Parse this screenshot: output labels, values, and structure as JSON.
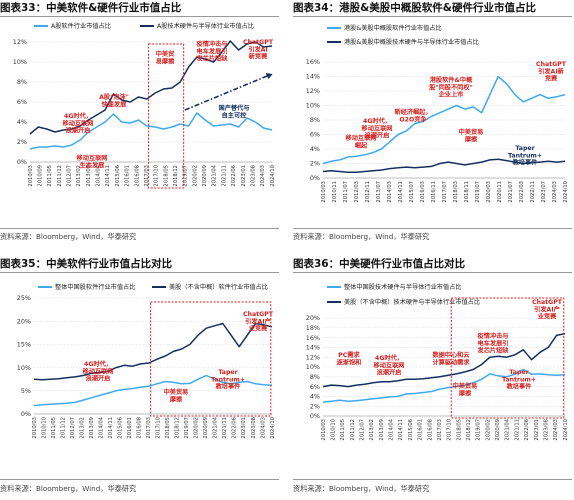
{
  "colors": {
    "dark": "#15305e",
    "light": "#3fa9f0",
    "red": "#d62020",
    "grid": "#c8c8c8"
  },
  "source": "资料来源：Bloomberg，Wind，华泰研究",
  "panels": [
    {
      "title": "图表33：",
      "subtitle": "中美软件&硬件行业市值占比",
      "source": "资料来源：Bloomberg，Wind，华泰研究"
    },
    {
      "title": "图表34：",
      "subtitle": "港股&美股中概股软件&硬件行业市值占比",
      "source": "资料来源：Bloomberg，Wind，华泰研究"
    },
    {
      "title": "图表35：",
      "subtitle": "中美软件行业市值占比对比",
      "source": "资料来源：Bloomberg，Wind，华泰研究"
    },
    {
      "title": "图表36：",
      "subtitle": "中美硬件行业市值占比对比",
      "source": "资料来源：Bloomberg，Wind，华泰研究"
    }
  ],
  "chart_data": [
    {
      "type": "line",
      "title": "中美软件&硬件行业市值占比",
      "x": [
        "2010/03",
        "2010/09",
        "2011/03",
        "2011/09",
        "2012/03",
        "2012/09",
        "2013/03",
        "2013/09",
        "2014/03",
        "2014/09",
        "2015/03",
        "2015/09",
        "2016/03",
        "2016/09",
        "2017/03",
        "2017/09",
        "2018/03",
        "2018/09",
        "2019/03",
        "2019/09",
        "2020/03",
        "2020/09",
        "2021/03",
        "2021/09",
        "2022/03",
        "2022/09",
        "2023/03",
        "2023/09",
        "2024/03",
        "2024/10"
      ],
      "xticks": [
        "2010/03",
        "2010/09",
        "2011/05",
        "2011/12",
        "2012/07",
        "2013/02",
        "2013/09",
        "2014/04",
        "2014/11",
        "2015/06",
        "2016/01",
        "2016/08",
        "2017/03",
        "2017/10",
        "2018/05",
        "2018/12",
        "2019/07",
        "2020/02",
        "2020/09",
        "2021/04",
        "2021/11",
        "2022/06",
        "2023/01",
        "2023/08",
        "2024/03",
        "2024/10"
      ],
      "ylim": [
        0,
        12
      ],
      "yticks": [
        0,
        2,
        4,
        6,
        8,
        10,
        12
      ],
      "ytick_labels": [
        "0%",
        "2%",
        "4%",
        "6%",
        "8%",
        "10%",
        "12%"
      ],
      "legend": "top",
      "series": [
        {
          "name": "A股软件行业市值占比",
          "color": "light",
          "values": [
            1.3,
            1.5,
            1.5,
            1.6,
            1.5,
            1.7,
            2.2,
            3.0,
            3.5,
            4.0,
            4.8,
            4.0,
            3.9,
            4.2,
            3.6,
            3.5,
            3.3,
            3.5,
            3.8,
            3.6,
            4.9,
            4.2,
            3.6,
            3.7,
            3.8,
            3.5,
            4.4,
            4.0,
            3.4,
            3.2
          ]
        },
        {
          "name": "A股技术硬件与半导体行业市值占比",
          "color": "dark",
          "values": [
            2.8,
            3.5,
            3.3,
            3.0,
            3.2,
            3.3,
            3.6,
            4.2,
            4.7,
            5.2,
            6.8,
            6.2,
            6.0,
            6.5,
            6.3,
            6.9,
            7.3,
            7.4,
            8.0,
            9.5,
            10.5,
            10.3,
            10.0,
            11.0,
            12.1,
            11.2,
            11.8,
            12.0,
            11.5,
            11.6
          ]
        }
      ],
      "annotations": [
        "4G时代，移动互联网浪潮开启",
        "A股\"泡沫\"快速发展",
        "移动互联网生态发展",
        "中美贸易摩擦",
        "疫情冲击与电车发展引发芯片短缺",
        "ChatGPT引发AI新竞赛",
        "国产替代与自主可控"
      ]
    },
    {
      "type": "line",
      "title": "港股&美股中概股软件&硬件行业市值占比",
      "x": [
        "2010/03",
        "2010/09",
        "2011/03",
        "2011/09",
        "2012/03",
        "2012/09",
        "2013/03",
        "2013/09",
        "2014/03",
        "2014/09",
        "2015/03",
        "2015/09",
        "2016/03",
        "2016/09",
        "2017/03",
        "2017/09",
        "2018/03",
        "2018/09",
        "2019/03",
        "2019/09",
        "2020/03",
        "2020/09",
        "2021/03",
        "2021/09",
        "2022/03",
        "2022/09",
        "2023/03",
        "2023/09",
        "2024/03",
        "2024/10"
      ],
      "xticks": [
        "2010/03",
        "2010/11",
        "2011/07",
        "2012/03",
        "2012/11",
        "2013/07",
        "2014/03",
        "2014/11",
        "2015/07",
        "2016/03",
        "2016/11",
        "2017/07",
        "2018/03",
        "2018/11",
        "2019/07",
        "2020/03",
        "2020/11",
        "2021/07",
        "2022/03",
        "2022/11",
        "2023/07",
        "2024/03",
        "2024/10"
      ],
      "ylim": [
        0,
        16
      ],
      "yticks": [
        0,
        2,
        4,
        6,
        8,
        10,
        12,
        14,
        16
      ],
      "ytick_labels": [
        "0%",
        "2%",
        "4%",
        "6%",
        "8%",
        "10%",
        "12%",
        "14%",
        "16%"
      ],
      "legend": "top",
      "series": [
        {
          "name": "港股&美股中概股软件行业市值占比",
          "color": "light",
          "values": [
            2.0,
            2.3,
            2.5,
            2.9,
            3.0,
            3.2,
            3.5,
            4.0,
            5.0,
            6.0,
            6.5,
            7.5,
            7.8,
            8.5,
            9.0,
            9.5,
            10.0,
            9.5,
            9.8,
            9.0,
            11.5,
            14.0,
            13.0,
            11.5,
            10.5,
            11.0,
            11.5,
            11.0,
            11.2,
            11.5
          ]
        },
        {
          "name": "港股&美股中概股技术硬件与半导体行业市值占比",
          "color": "dark",
          "values": [
            0.9,
            1.0,
            0.9,
            0.8,
            0.8,
            0.9,
            1.0,
            1.1,
            1.3,
            1.4,
            1.5,
            1.4,
            1.5,
            1.6,
            2.0,
            2.2,
            2.0,
            1.8,
            2.0,
            2.2,
            2.5,
            2.6,
            2.4,
            2.2,
            2.0,
            2.1,
            2.2,
            2.3,
            2.2,
            2.3
          ]
        }
      ],
      "annotations": [
        "移动互联网崛起",
        "4G时代，移动互联网浪潮开启",
        "新经济崛起，O2O竞争",
        "港股软件&中概股“同股不同权”企业上市",
        "中美贸易摩擦",
        "Taper Tantrum+教培事件",
        "ChatGPT引发AI新竞赛"
      ]
    },
    {
      "type": "line",
      "title": "中美软件行业市值占比对比",
      "x": [
        "2010/03",
        "2010/09",
        "2011/03",
        "2011/09",
        "2012/03",
        "2012/09",
        "2013/03",
        "2013/09",
        "2014/03",
        "2014/09",
        "2015/03",
        "2015/09",
        "2016/03",
        "2016/09",
        "2017/03",
        "2017/09",
        "2018/03",
        "2018/09",
        "2019/03",
        "2019/09",
        "2020/03",
        "2020/09",
        "2021/03",
        "2021/09",
        "2022/03",
        "2022/09",
        "2023/03",
        "2023/09",
        "2024/03",
        "2024/10"
      ],
      "xticks": [
        "2010/03",
        "2010/10",
        "2011/05",
        "2011/12",
        "2012/07",
        "2013/02",
        "2013/09",
        "2014/04",
        "2014/11",
        "2015/06",
        "2016/01",
        "2016/08",
        "2017/03",
        "2017/10",
        "2018/05",
        "2018/12",
        "2019/07",
        "2020/02",
        "2020/09",
        "2021/04",
        "2021/11",
        "2022/06",
        "2023/01",
        "2023/08",
        "2024/03",
        "2024/10"
      ],
      "ylim": [
        0,
        25
      ],
      "yticks": [
        0,
        5,
        10,
        15,
        20,
        25
      ],
      "ytick_labels": [
        "0%",
        "5%",
        "10%",
        "15%",
        "20%",
        "25%"
      ],
      "legend": "top",
      "series": [
        {
          "name": "整体中国股软件行业市值占比",
          "color": "light",
          "values": [
            1.8,
            2.0,
            2.1,
            2.2,
            2.3,
            2.5,
            3.0,
            3.5,
            4.0,
            4.5,
            5.0,
            5.3,
            5.5,
            5.8,
            6.0,
            6.5,
            7.0,
            6.8,
            6.5,
            6.6,
            7.5,
            8.3,
            7.5,
            6.8,
            6.5,
            6.8,
            7.0,
            6.5,
            6.3,
            6.2
          ]
        },
        {
          "name": "美股（不含中概）软件行业市值占比",
          "color": "dark",
          "values": [
            7.5,
            7.4,
            7.5,
            7.6,
            7.8,
            8.0,
            8.3,
            8.8,
            9.0,
            9.2,
            10.0,
            10.5,
            10.3,
            10.8,
            11.0,
            11.8,
            12.5,
            13.5,
            14.0,
            15.0,
            17.0,
            18.5,
            19.0,
            19.5,
            17.0,
            14.5,
            17.0,
            19.5,
            19.2,
            18.8
          ]
        }
      ],
      "annotations": [
        "4G时代，移动互联网浪潮开启",
        "中美贸易摩擦",
        "Taper Tantrum+教培事件",
        "ChatGPT引发AI产业竞赛"
      ]
    },
    {
      "type": "line",
      "title": "中美硬件行业市值占比对比",
      "x": [
        "2010/03",
        "2010/09",
        "2011/03",
        "2011/09",
        "2012/03",
        "2012/09",
        "2013/03",
        "2013/09",
        "2014/03",
        "2014/09",
        "2015/03",
        "2015/09",
        "2016/03",
        "2016/09",
        "2017/03",
        "2017/09",
        "2018/03",
        "2018/09",
        "2019/03",
        "2019/09",
        "2020/03",
        "2020/09",
        "2021/03",
        "2021/09",
        "2022/03",
        "2022/09",
        "2023/03",
        "2023/09",
        "2024/03",
        "2024/10"
      ],
      "xticks": [
        "2010/03",
        "2010/10",
        "2011/05",
        "2011/12",
        "2012/07",
        "2013/02",
        "2013/09",
        "2014/04",
        "2014/11",
        "2015/06",
        "2016/01",
        "2016/08",
        "2017/03",
        "2017/10",
        "2018/05",
        "2018/12",
        "2019/07",
        "2020/02",
        "2020/09",
        "2021/04",
        "2021/11",
        "2022/06",
        "2023/01",
        "2023/08",
        "2024/03",
        "2024/10"
      ],
      "ylim": [
        0,
        20
      ],
      "yticks": [
        0,
        2,
        4,
        6,
        8,
        10,
        12,
        14,
        16,
        18,
        20
      ],
      "ytick_labels": [
        "0%",
        "2%",
        "4%",
        "6%",
        "8%",
        "10%",
        "12%",
        "14%",
        "16%",
        "18%",
        "20%"
      ],
      "legend": "top",
      "series": [
        {
          "name": "整体中国股技术硬件与半导体行业市值占比",
          "color": "light",
          "values": [
            2.8,
            3.0,
            3.2,
            3.0,
            3.1,
            3.3,
            3.5,
            3.7,
            3.9,
            4.0,
            4.5,
            4.6,
            4.8,
            5.0,
            5.5,
            5.8,
            6.0,
            6.3,
            6.8,
            7.5,
            8.6,
            8.2,
            8.0,
            8.5,
            9.5,
            8.5,
            8.6,
            8.4,
            8.3,
            8.4
          ]
        },
        {
          "name": "美股（不含中概）技术硬件与半导体行业市值占比",
          "color": "dark",
          "values": [
            6.0,
            6.3,
            6.2,
            6.0,
            6.3,
            6.5,
            6.8,
            7.0,
            7.0,
            7.2,
            7.5,
            7.5,
            7.6,
            7.8,
            8.0,
            8.3,
            8.6,
            9.0,
            9.5,
            10.5,
            12.0,
            12.2,
            12.0,
            12.5,
            13.5,
            11.5,
            13.0,
            14.0,
            16.5,
            16.8
          ]
        }
      ],
      "annotations": [
        "PC需求逐渐饱和",
        "4G时代，移动互联网浪潮开启",
        "数据中心和云计算驱动需求",
        "疫情冲击与电车发展引发芯片短缺",
        "中美贸易摩擦",
        "Taper Tantrum+教培事件",
        "ChatGPT引发AI产业竞赛"
      ]
    }
  ]
}
